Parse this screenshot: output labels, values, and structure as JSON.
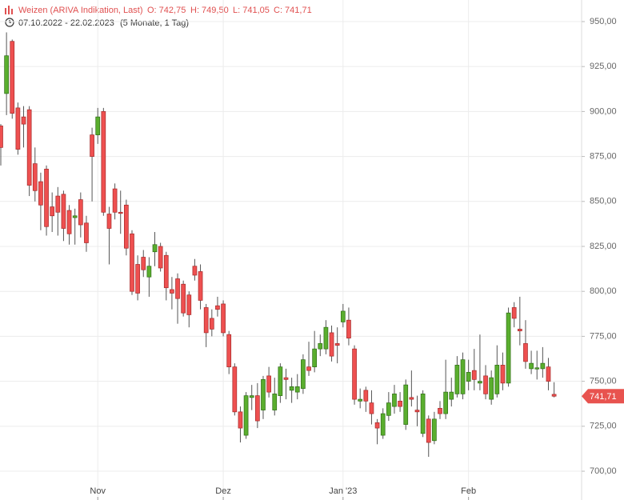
{
  "chart_data": {
    "type": "candlestick",
    "title": "Weizen (ARIVA Indikation, Last)",
    "ohlc_labels": [
      "O: 742,75",
      "H: 749,50",
      "L: 741,05",
      "C: 741,71"
    ],
    "period": "07.10.2022 - 22.02.2023",
    "period_note": "(5 Monate, 1 Tag)",
    "up_color": "#5aae2e",
    "down_color": "#ee5050",
    "grid": true,
    "ylim": [
      684,
      962
    ],
    "yticks": [
      {
        "value": 700,
        "label": "700,00"
      },
      {
        "value": 725,
        "label": "725,00"
      },
      {
        "value": 750,
        "label": "750,00"
      },
      {
        "value": 775,
        "label": "775,00"
      },
      {
        "value": 800,
        "label": "800,00"
      },
      {
        "value": 825,
        "label": "825,00"
      },
      {
        "value": 850,
        "label": "850,00"
      },
      {
        "value": 875,
        "label": "875,00"
      },
      {
        "value": 900,
        "label": "900,00"
      },
      {
        "value": 925,
        "label": "925,00"
      },
      {
        "value": 950,
        "label": "950,00"
      }
    ],
    "last_price": {
      "value": 741.71,
      "label": "741,71"
    },
    "categories": [
      null,
      null,
      null,
      null,
      null,
      null,
      null,
      null,
      null,
      null,
      null,
      null,
      null,
      null,
      null,
      null,
      null,
      "Nov",
      null,
      null,
      null,
      null,
      null,
      null,
      null,
      null,
      null,
      null,
      null,
      null,
      null,
      null,
      null,
      null,
      null,
      null,
      null,
      null,
      null,
      "Dez",
      null,
      null,
      null,
      null,
      null,
      null,
      null,
      null,
      null,
      null,
      null,
      null,
      null,
      null,
      null,
      null,
      null,
      null,
      null,
      null,
      "Jan '23",
      null,
      null,
      null,
      null,
      null,
      null,
      null,
      null,
      null,
      null,
      null,
      null,
      null,
      null,
      null,
      null,
      null,
      null,
      null,
      null,
      null,
      "Feb",
      null,
      null,
      null,
      null,
      null,
      null,
      null,
      null,
      null,
      null,
      null,
      null,
      null,
      null,
      null
    ],
    "open": [
      892,
      910,
      939,
      902,
      897,
      901,
      871,
      861,
      868,
      847,
      853,
      854,
      845,
      841,
      851,
      838,
      887,
      887,
      900,
      843,
      857,
      844,
      848,
      832,
      815,
      819,
      808,
      822,
      825,
      820,
      801,
      807,
      804,
      798,
      814,
      811,
      791,
      785,
      792,
      793,
      776,
      758,
      733,
      720,
      741,
      742,
      734,
      753,
      734,
      742,
      752,
      745,
      744,
      746,
      758,
      758,
      768,
      768,
      777,
      771,
      783,
      784,
      768,
      739,
      745,
      738,
      727,
      720,
      731,
      736,
      739,
      726,
      741,
      734,
      721,
      729,
      717,
      735,
      732,
      740,
      743,
      743,
      750,
      756,
      749,
      753,
      740,
      743,
      759,
      749,
      791,
      779,
      771,
      757,
      757,
      757,
      758,
      742.75
    ],
    "high": [
      893,
      944,
      940,
      905,
      903,
      903,
      880,
      866,
      870,
      855,
      858,
      856,
      848,
      846,
      855,
      842,
      891,
      902,
      902,
      847,
      860,
      856,
      851,
      834,
      820,
      823,
      819,
      833,
      827,
      822,
      808,
      810,
      806,
      800,
      818,
      815,
      793,
      790,
      797,
      795,
      778,
      760,
      736,
      744,
      748,
      749,
      753,
      758,
      752,
      760,
      757,
      752,
      754,
      765,
      772,
      778,
      776,
      784,
      781,
      780,
      793,
      791,
      770,
      746,
      747,
      745,
      729,
      735,
      744,
      748,
      744,
      751,
      756,
      742,
      745,
      731,
      733,
      739,
      762,
      752,
      764,
      766,
      762,
      768,
      776,
      759,
      756,
      770,
      766,
      791,
      794,
      797,
      784,
      767,
      767,
      769,
      763,
      749.5
    ],
    "low": [
      870,
      898,
      896,
      876,
      880,
      853,
      850,
      834,
      831,
      833,
      831,
      828,
      826,
      826,
      830,
      822,
      850,
      882,
      842,
      815,
      840,
      832,
      820,
      798,
      795,
      808,
      797,
      814,
      811,
      795,
      790,
      782,
      786,
      780,
      806,
      790,
      769,
      775,
      786,
      775,
      754,
      731,
      716,
      718,
      734,
      724,
      729,
      741,
      731,
      738,
      740,
      738,
      740,
      743,
      753,
      755,
      764,
      765,
      761,
      760,
      780,
      770,
      737,
      735,
      733,
      726,
      715,
      718,
      728,
      732,
      733,
      723,
      736,
      725,
      719,
      708,
      715,
      729,
      729,
      736,
      741,
      740,
      745,
      745,
      745,
      740,
      737,
      741,
      745,
      747,
      780,
      770,
      757,
      754,
      751,
      752,
      745,
      741.05
    ],
    "close": [
      880,
      931,
      899,
      879,
      893,
      859,
      856,
      848,
      836,
      842,
      844,
      835,
      832,
      842,
      837,
      827,
      875,
      897,
      844,
      835,
      844,
      843.5,
      824,
      800,
      799,
      812,
      814,
      826,
      813,
      802,
      799,
      796,
      788,
      787,
      809,
      795,
      777,
      779,
      790,
      777,
      758,
      733,
      724,
      742,
      742,
      728,
      751,
      744,
      743,
      758,
      751,
      747,
      747,
      762,
      756,
      768,
      771,
      780,
      764,
      770,
      789,
      774,
      740,
      740,
      739,
      732,
      724,
      732,
      738,
      743,
      736,
      748,
      740,
      733,
      743,
      716,
      729,
      732,
      744,
      744,
      759,
      762,
      755,
      751,
      750,
      743,
      752,
      759,
      749,
      788,
      785,
      778,
      761,
      760,
      757.5,
      760,
      750,
      741.71
    ]
  }
}
